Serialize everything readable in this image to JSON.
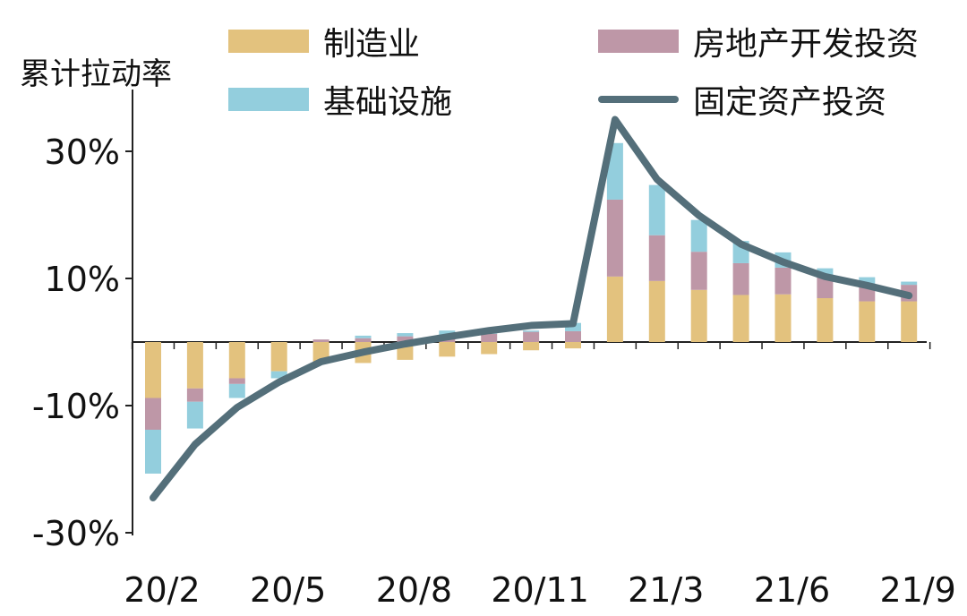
{
  "colors": {
    "manufacturing": "#E3C27E",
    "real_estate": "#BE97A7",
    "infrastructure": "#93CEDD",
    "fixed_asset": "#546F7A",
    "axis": "#222222"
  },
  "chart_data": {
    "type": "bar",
    "stacked": true,
    "ylabel": "累计拉动率",
    "ylim": [
      -30,
      40
    ],
    "yticks": [
      30,
      10,
      -10,
      -30
    ],
    "ytick_labels": [
      "30%",
      "10%",
      "-10%",
      "-30%"
    ],
    "categories": [
      "20/2",
      "20/3",
      "20/4",
      "20/5",
      "20/6",
      "20/7",
      "20/8",
      "20/9",
      "20/10",
      "20/11",
      "20/12",
      "21/2",
      "21/3",
      "21/4",
      "21/5",
      "21/6",
      "21/7",
      "21/8",
      "21/9"
    ],
    "xtick_labels": [
      "20/2",
      "20/5",
      "20/8",
      "20/11",
      "21/3",
      "21/6",
      "21/9"
    ],
    "series": [
      {
        "name": "制造业",
        "type": "bar",
        "values": [
          -8.8,
          -7.3,
          -5.7,
          -4.6,
          -3.2,
          -3.3,
          -2.8,
          -2.3,
          -1.9,
          -1.3,
          -1.0,
          10.3,
          9.6,
          8.2,
          7.4,
          7.5,
          6.9,
          6.4,
          6.4
        ]
      },
      {
        "name": "房地产开发投资",
        "type": "bar",
        "values": [
          -5.0,
          -2.1,
          -0.9,
          0.0,
          0.4,
          0.6,
          0.9,
          1.1,
          1.3,
          1.6,
          1.7,
          12.1,
          7.2,
          6.0,
          5.0,
          4.2,
          3.4,
          2.8,
          2.6
        ]
      },
      {
        "name": "基础设施",
        "type": "bar",
        "values": [
          -6.9,
          -4.2,
          -2.2,
          -1.1,
          0.0,
          0.4,
          0.5,
          0.7,
          0.6,
          0.2,
          1.3,
          8.9,
          7.9,
          5.0,
          3.5,
          2.4,
          1.3,
          1.0,
          0.5
        ]
      },
      {
        "name": "固定资产投资",
        "type": "line",
        "values": [
          -24.5,
          -16.1,
          -10.3,
          -6.3,
          -3.1,
          -1.6,
          -0.3,
          0.8,
          1.8,
          2.6,
          2.9,
          35.0,
          25.6,
          19.9,
          15.4,
          12.6,
          10.3,
          8.9,
          7.3
        ]
      }
    ],
    "legend_position": "top",
    "grid": false
  }
}
